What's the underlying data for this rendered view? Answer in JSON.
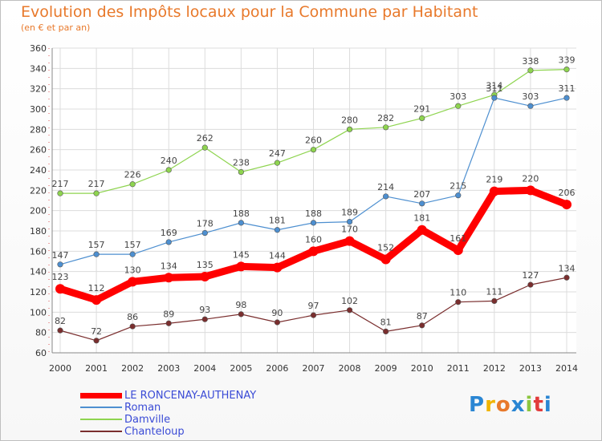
{
  "header": {
    "title": "Evolution des Impôts locaux pour la Commune par Habitant",
    "subtitle": "(en € et par an)"
  },
  "brand": {
    "text": "Proxiti",
    "colors": [
      "#2a86d3",
      "#f0b400",
      "#e8792b",
      "#2a86d3",
      "#8cc63f",
      "#e23b3b",
      "#2a86d3"
    ]
  },
  "chart_data": {
    "type": "line",
    "x": [
      2000,
      2001,
      2002,
      2003,
      2004,
      2005,
      2006,
      2007,
      2008,
      2009,
      2010,
      2011,
      2012,
      2013,
      2014
    ],
    "ylim": [
      60,
      360
    ],
    "yticks": [
      60,
      80,
      100,
      120,
      140,
      160,
      180,
      200,
      220,
      240,
      260,
      280,
      300,
      320,
      340,
      360
    ],
    "grid": true,
    "legend_placement": "bottom-left",
    "series": [
      {
        "name": "LE RONCENAY-AUTHENAY",
        "color": "#ff0000",
        "values": [
          123,
          112,
          130,
          134,
          135,
          145,
          144,
          160,
          170,
          152,
          181,
          161,
          219,
          220,
          206
        ]
      },
      {
        "name": "Roman",
        "color": "#4d8fd0",
        "values": [
          147,
          157,
          157,
          169,
          178,
          188,
          181,
          188,
          189,
          214,
          207,
          215,
          311,
          303,
          311
        ]
      },
      {
        "name": "Damville",
        "color": "#8ed44f",
        "values": [
          217,
          217,
          226,
          240,
          262,
          238,
          247,
          260,
          280,
          282,
          291,
          303,
          314,
          338,
          339
        ]
      },
      {
        "name": "Chanteloup",
        "color": "#7a2e2e",
        "values": [
          82,
          72,
          86,
          89,
          93,
          98,
          90,
          97,
          102,
          81,
          87,
          110,
          111,
          127,
          134
        ]
      }
    ]
  }
}
